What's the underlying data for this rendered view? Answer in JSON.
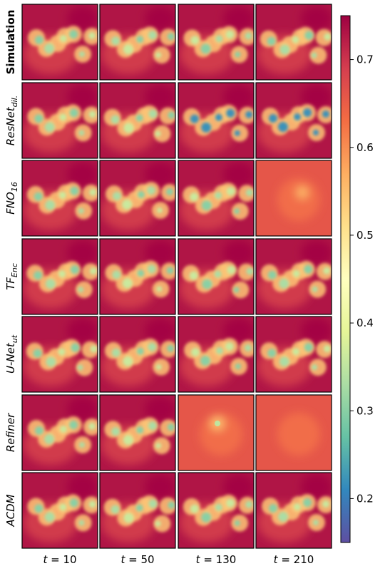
{
  "chart_data": {
    "type": "heatmap",
    "rows": [
      {
        "label": "Simulation",
        "main": "Simulation",
        "sub": "",
        "bold": true,
        "italic": false
      },
      {
        "label": "ResNet_dil.",
        "main": "ResNet",
        "sub": "dil.",
        "bold": false,
        "italic": true
      },
      {
        "label": "FNO_16",
        "main": "FNO",
        "sub": "16",
        "bold": false,
        "italic": true
      },
      {
        "label": "TF_Enc",
        "main": "TF",
        "sub": "Enc",
        "bold": false,
        "italic": true
      },
      {
        "label": "U-Net_ut",
        "main": "U-Net",
        "sub": "ut",
        "bold": false,
        "italic": true
      },
      {
        "label": "Refiner",
        "main": "Refiner",
        "sub": "",
        "bold": false,
        "italic": true
      },
      {
        "label": "ACDM",
        "main": "ACDM",
        "sub": "",
        "bold": false,
        "italic": true
      }
    ],
    "columns": [
      {
        "label": "t = 10",
        "var": "t",
        "eq": " = ",
        "value": "10"
      },
      {
        "label": "t = 50",
        "var": "t",
        "eq": " = ",
        "value": "50"
      },
      {
        "label": "t = 130",
        "var": "t",
        "eq": " = ",
        "value": "130"
      },
      {
        "label": "t = 210",
        "var": "t",
        "eq": " = ",
        "value": "210"
      }
    ],
    "colorbar": {
      "colormap": "Spectral_r",
      "range": [
        0.15,
        0.75
      ],
      "ticks": [
        0.2,
        0.3,
        0.4,
        0.5,
        0.6,
        0.7
      ],
      "tick_labels": [
        "0.2",
        "0.3",
        "0.4",
        "0.5",
        "0.6",
        "0.7"
      ],
      "colors": [
        "#5e4fa2",
        "#3288bd",
        "#66c2a5",
        "#abdda4",
        "#e6f598",
        "#ffffbf",
        "#fee08b",
        "#fdae61",
        "#f46d43",
        "#d53e4f",
        "#9e0142"
      ]
    }
  }
}
